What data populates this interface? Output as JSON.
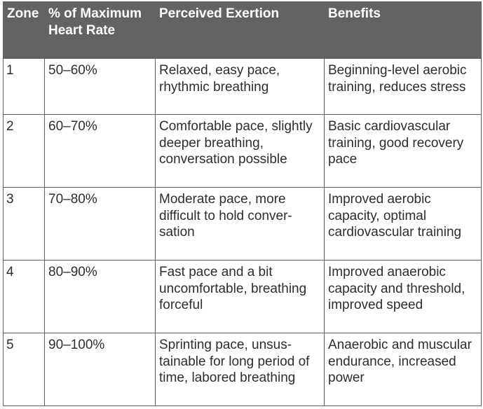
{
  "table": {
    "headers": [
      "Zone",
      "% of Maximum Heart Rate",
      "Perceived Exertion",
      "Benefits"
    ],
    "rows": [
      [
        "1",
        "50–60%",
        "Relaxed, easy pace, rhythmic breathing",
        "Beginning-level aerobic training, reduces stress"
      ],
      [
        "2",
        "60–70%",
        "Comfortable pace, slightly deeper breathing, conversation possible",
        "Basic cardiovascular training, good recovery pace"
      ],
      [
        "3",
        "70–80%",
        "Moderate pace, more difficult to hold conver-sation",
        "Improved aerobic capacity, optimal cardiovascular training"
      ],
      [
        "4",
        "80–90%",
        "Fast pace and a bit uncomfortable, breathing forceful",
        "Improved anaerobic capacity and threshold, improved speed"
      ],
      [
        "5",
        "90–100%",
        "Sprinting pace, unsus-tainable for long period of time, labored breathing",
        "Anaerobic and muscular endurance, increased power"
      ]
    ]
  }
}
